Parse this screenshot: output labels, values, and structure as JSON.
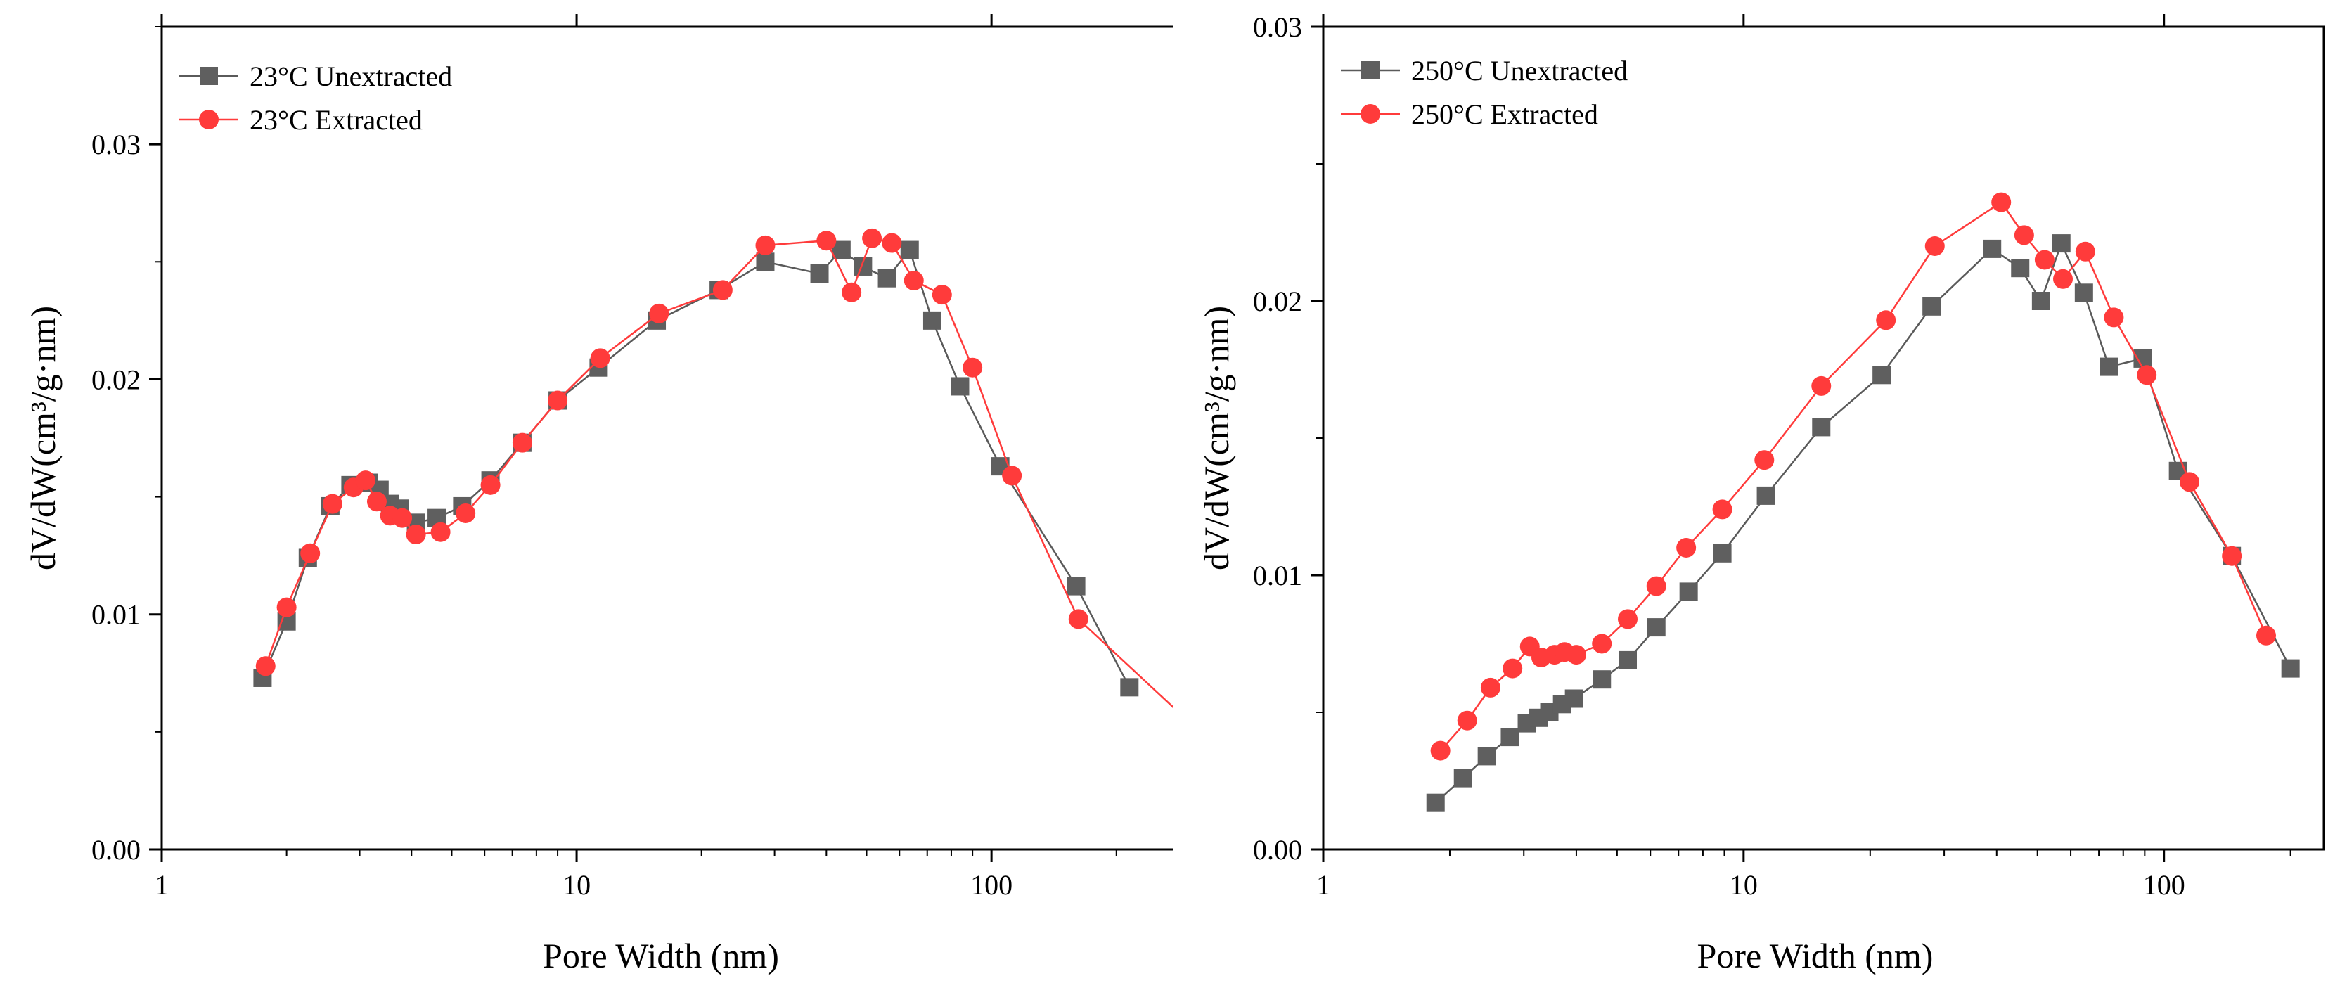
{
  "chart_data": [
    {
      "type": "line",
      "xscale": "log",
      "xlabel": "Pore Width (nm)",
      "ylabel": "dV/dW(cm³/g·nm)",
      "xlim": [
        1,
        280
      ],
      "ylim": [
        0,
        0.035
      ],
      "xticks": [
        1,
        10,
        100
      ],
      "xtick_labels": [
        "1",
        "10",
        "100"
      ],
      "yticks": [
        0,
        0.01,
        0.02,
        0.03
      ],
      "ytick_labels": [
        "0.00",
        "0.01",
        "0.02",
        "0.03"
      ],
      "legend_position": "top-left",
      "series": [
        {
          "name": "23°C Unextracted",
          "marker": "square",
          "color": "#5f5f5f",
          "line_color": "#5a5a5a",
          "x": [
            1.75,
            2.0,
            2.25,
            2.55,
            2.85,
            3.15,
            3.35,
            3.55,
            3.75,
            4.1,
            4.6,
            5.3,
            6.2,
            7.4,
            9.0,
            11.3,
            15.6,
            22.0,
            28.5,
            38.5,
            43.5,
            49.0,
            56.0,
            63.5,
            72.0,
            84.0,
            105.0,
            160.0,
            215.0
          ],
          "y": [
            0.0073,
            0.0097,
            0.0124,
            0.0146,
            0.0155,
            0.0156,
            0.0153,
            0.0147,
            0.0145,
            0.0139,
            0.0141,
            0.0146,
            0.0157,
            0.0173,
            0.0191,
            0.0205,
            0.0225,
            0.0238,
            0.025,
            0.0245,
            0.0255,
            0.0248,
            0.0243,
            0.0255,
            0.0225,
            0.0197,
            0.0163,
            0.0112,
            0.0069
          ],
          "extra_x": [],
          "extra_y": []
        },
        {
          "name": "23°C Extracted",
          "marker": "circle",
          "color": "#ff3b3b",
          "line_color": "#ff3b3b",
          "x": [
            1.78,
            2.0,
            2.28,
            2.58,
            2.9,
            3.1,
            3.3,
            3.55,
            3.8,
            4.1,
            4.7,
            5.4,
            6.2,
            7.4,
            9.0,
            11.4,
            15.8,
            22.5,
            28.5,
            40.0,
            46.0,
            51.5,
            57.5,
            65.0,
            76.0,
            90.0,
            112.0,
            162.0
          ],
          "y": [
            0.0078,
            0.0103,
            0.0126,
            0.0147,
            0.0154,
            0.0157,
            0.0148,
            0.0142,
            0.0141,
            0.0134,
            0.0135,
            0.0143,
            0.0155,
            0.0173,
            0.0191,
            0.0209,
            0.0228,
            0.0238,
            0.0257,
            0.0259,
            0.0237,
            0.026,
            0.0258,
            0.0242,
            0.0236,
            0.0205,
            0.0159,
            0.0098
          ],
          "extra_x": [
            280
          ],
          "extra_y": [
            0.0059
          ]
        }
      ]
    },
    {
      "type": "line",
      "xscale": "log",
      "xlabel": "Pore Width (nm)",
      "ylabel": "dV/dW(cm³/g·nm)",
      "xlim": [
        1,
        240
      ],
      "ylim": [
        0,
        0.03
      ],
      "xticks": [
        1,
        10,
        100
      ],
      "xtick_labels": [
        "1",
        "10",
        "100"
      ],
      "yticks": [
        0,
        0.01,
        0.02,
        0.03
      ],
      "ytick_labels": [
        "0.00",
        "0.01",
        "0.02",
        "0.03"
      ],
      "legend_position": "top-left",
      "series": [
        {
          "name": "250°C Unextracted",
          "marker": "square",
          "color": "#5f5f5f",
          "line_color": "#5a5a5a",
          "x": [
            1.85,
            2.15,
            2.45,
            2.78,
            3.05,
            3.25,
            3.45,
            3.7,
            3.95,
            4.6,
            5.3,
            6.2,
            7.4,
            8.9,
            11.3,
            15.3,
            21.3,
            28.0,
            39.0,
            45.5,
            51.0,
            57.0,
            64.5,
            74.0,
            89.0,
            108.0,
            145.0,
            200.0
          ],
          "y": [
            0.0017,
            0.0026,
            0.0034,
            0.0041,
            0.0046,
            0.0048,
            0.005,
            0.0053,
            0.0055,
            0.0062,
            0.0069,
            0.0081,
            0.0094,
            0.0108,
            0.0129,
            0.0154,
            0.0173,
            0.0198,
            0.0219,
            0.0212,
            0.02,
            0.0221,
            0.0203,
            0.0176,
            0.0179,
            0.0138,
            0.0107,
            0.0066
          ],
          "extra_x": [],
          "extra_y": []
        },
        {
          "name": "250°C Extracted",
          "marker": "circle",
          "color": "#ff3b3b",
          "line_color": "#ff3b3b",
          "x": [
            1.9,
            2.2,
            2.5,
            2.82,
            3.1,
            3.3,
            3.55,
            3.75,
            4.0,
            4.6,
            5.3,
            6.2,
            7.3,
            8.9,
            11.2,
            15.3,
            21.8,
            28.5,
            41.0,
            46.5,
            52.0,
            57.5,
            65.0,
            76.0,
            91.0,
            115.0,
            145.0,
            175.0
          ],
          "y": [
            0.0036,
            0.0047,
            0.0059,
            0.0066,
            0.0074,
            0.007,
            0.0071,
            0.0072,
            0.0071,
            0.0075,
            0.0084,
            0.0096,
            0.011,
            0.0124,
            0.0142,
            0.0169,
            0.0193,
            0.022,
            0.0236,
            0.0224,
            0.0215,
            0.0208,
            0.0218,
            0.0194,
            0.0173,
            0.0134,
            0.0107,
            0.0078
          ],
          "extra_x": [],
          "extra_y": []
        }
      ]
    }
  ]
}
